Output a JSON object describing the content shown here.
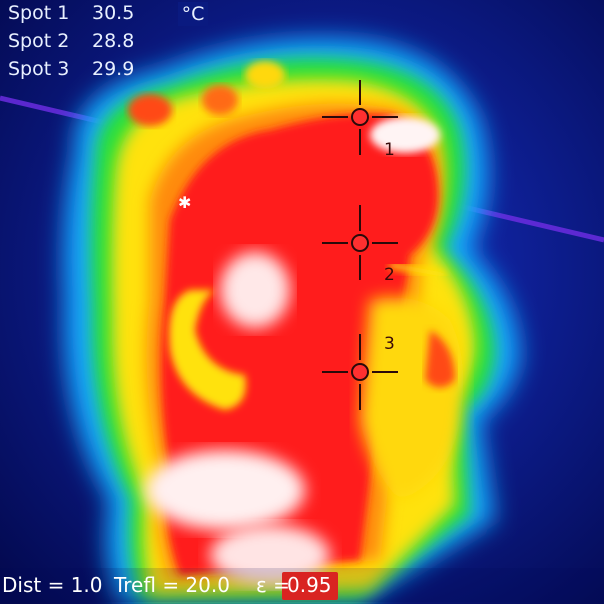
{
  "overlay": {
    "spots": [
      {
        "label": "Spot 1",
        "value": "30.5"
      },
      {
        "label": "Spot 2",
        "value": "28.8"
      },
      {
        "label": "Spot 3",
        "value": "29.9"
      }
    ],
    "unit": "°C"
  },
  "markers": [
    "1",
    "2",
    "3"
  ],
  "status_bar": {
    "dist": "Dist = 1.0",
    "trefl": "Trefl = 20.0",
    "emissivity_label": "ε =",
    "emissivity_value": "0.95"
  },
  "colors": {
    "background": "#05106e",
    "hot": "#ff1a1a",
    "warm": "#ffe600",
    "mid": "#22e02a",
    "cool": "#1aa0ff",
    "hotspot": "#fff4f4"
  }
}
